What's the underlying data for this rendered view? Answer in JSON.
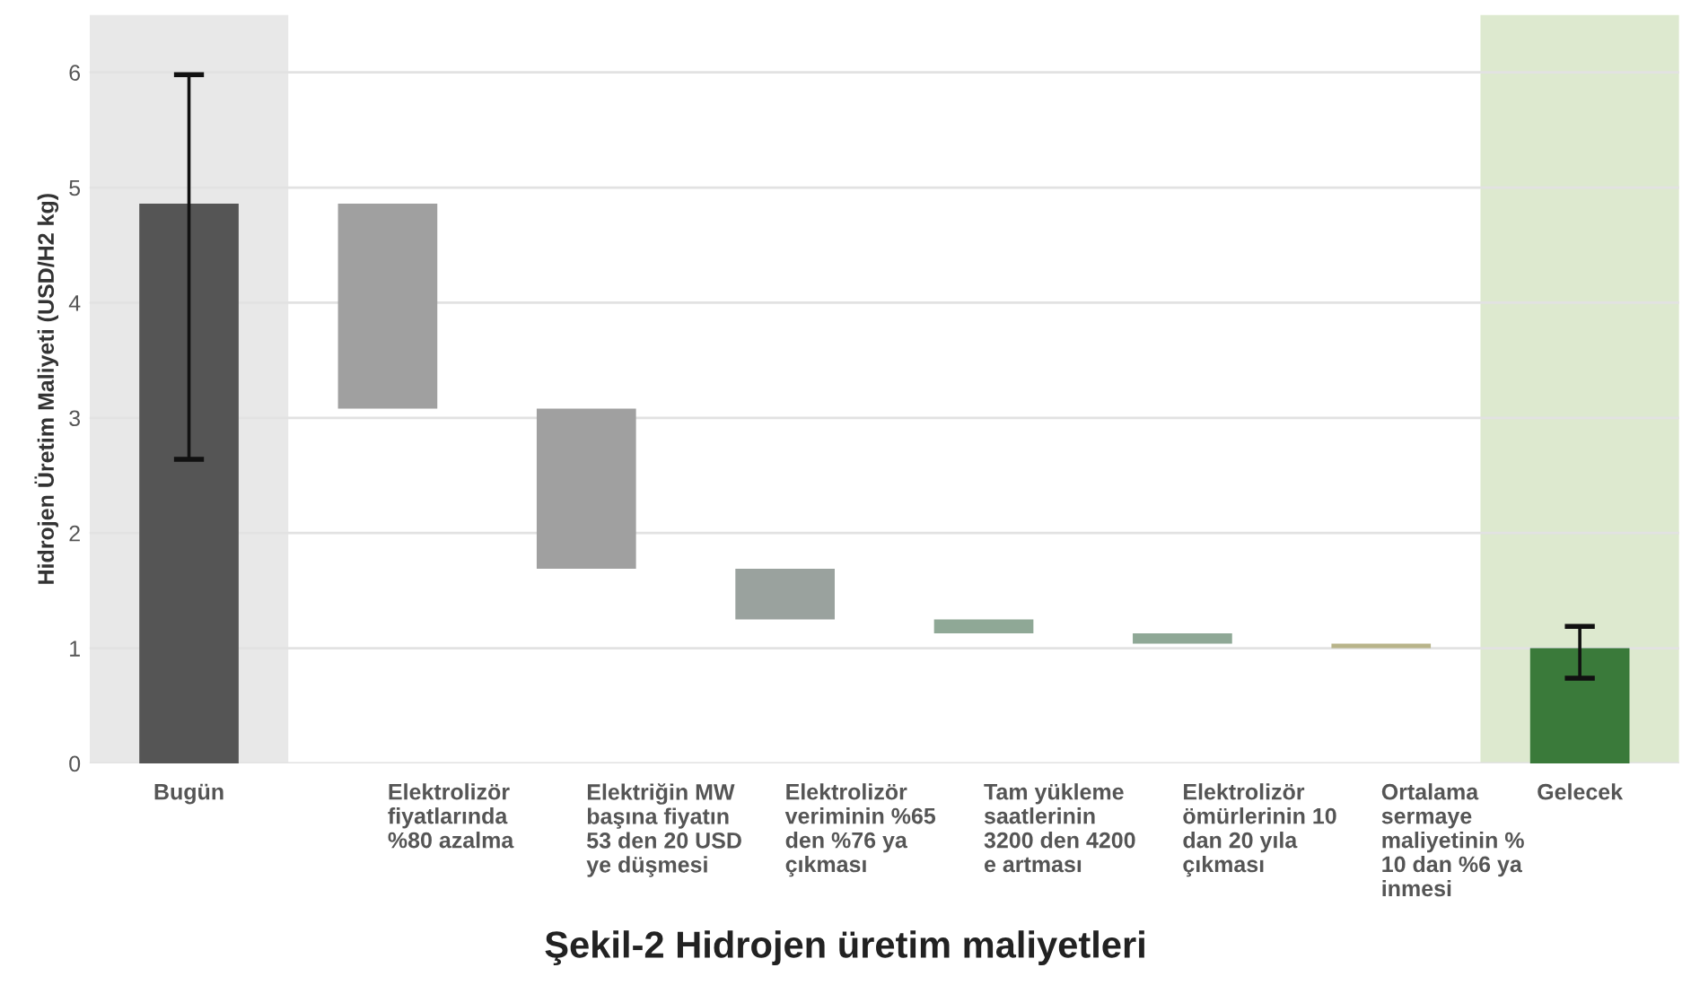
{
  "chart_data": {
    "type": "bar",
    "title": "Şekil-2 Hidrojen üretim maliyetleri",
    "ylabel": "Hidrojen Üretim Maliyeti (USD/H2 kg)",
    "categories": [
      "Bugün",
      "Elektrolizör\nfiyatlarında\n%80 azalma",
      "Elektriğin MW\nbaşına fiyatın\n53 den 20 USD\nye düşmesi",
      "Elektrolizör\nveriminin %65\nden %76 ya\nçıkması",
      "Tam yükleme\nsaatlerinin\n3200 den 4200\ne artması",
      "Elektrolizör\nömürlerinin 10\ndan 20 yıla\nçıkması",
      "Ortalama\nsermaye\nmaliyetinin %\n10 dan %6 ya\ninmesi",
      "Gelecek"
    ],
    "values": [
      4.86,
      1.78,
      1.39,
      0.44,
      0.12,
      0.09,
      0.04,
      1.0
    ],
    "base": [
      0,
      3.08,
      1.69,
      1.25,
      1.13,
      1.04,
      1.0,
      0
    ],
    "colors": [
      "#555555",
      "#a0a0a0",
      "#a0a0a0",
      "#9aa29e",
      "#8fa896",
      "#8fa896",
      "#b8b48a",
      "#3a7a3a"
    ],
    "errors": [
      [
        2.64,
        5.98
      ],
      null,
      null,
      null,
      null,
      null,
      null,
      [
        0.74,
        1.19
      ]
    ],
    "bands": [
      {
        "axis": "x",
        "from": "Bugün",
        "to": "Bugün",
        "color": "#e8e8e8"
      },
      {
        "axis": "x",
        "from": "Gelecek",
        "to": "Gelecek",
        "color": "#dde9cf"
      }
    ],
    "ylim": [
      0,
      6.5
    ],
    "yticks": [
      0,
      1,
      2,
      3,
      4,
      5,
      6
    ],
    "grid": "y"
  }
}
